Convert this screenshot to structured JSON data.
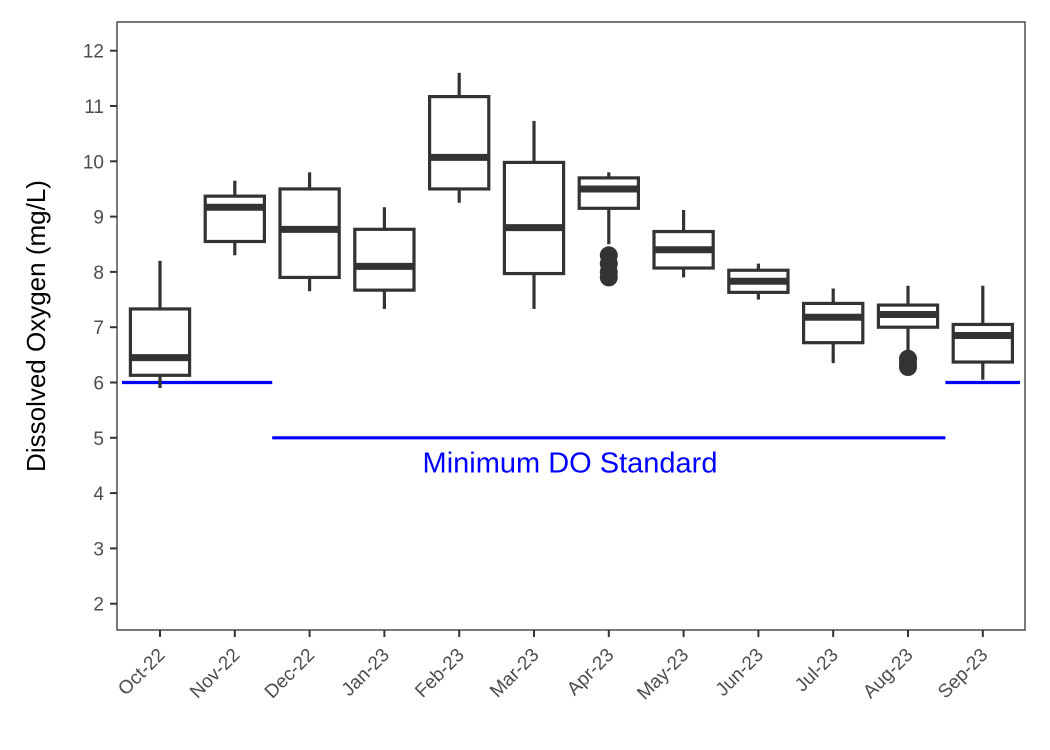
{
  "chart_data": {
    "type": "box",
    "title": "",
    "xlabel": "",
    "ylabel": "Dissolved Oxygen (mg/L)",
    "ylim": [
      1.5,
      12.4
    ],
    "yticks": [
      2,
      3,
      4,
      5,
      6,
      7,
      8,
      9,
      10,
      11,
      12
    ],
    "grid": false,
    "legend": "none",
    "categories": [
      "Oct-22",
      "Nov-22",
      "Dec-22",
      "Jan-23",
      "Feb-23",
      "Mar-23",
      "Apr-23",
      "May-23",
      "Jun-23",
      "Jul-23",
      "Aug-23",
      "Sep-23"
    ],
    "boxes": [
      {
        "min": 5.9,
        "q1": 6.13,
        "median": 6.45,
        "q3": 7.33,
        "max": 8.2,
        "outliers": []
      },
      {
        "min": 8.3,
        "q1": 8.55,
        "median": 9.17,
        "q3": 9.37,
        "max": 9.65,
        "outliers": []
      },
      {
        "min": 7.65,
        "q1": 7.9,
        "median": 8.77,
        "q3": 9.5,
        "max": 9.8,
        "outliers": []
      },
      {
        "min": 7.33,
        "q1": 7.67,
        "median": 8.1,
        "q3": 8.77,
        "max": 9.17,
        "outliers": []
      },
      {
        "min": 9.25,
        "q1": 9.5,
        "median": 10.07,
        "q3": 11.17,
        "max": 11.6,
        "outliers": []
      },
      {
        "min": 7.33,
        "q1": 7.97,
        "median": 8.8,
        "q3": 9.98,
        "max": 10.73,
        "outliers": []
      },
      {
        "min": 8.5,
        "q1": 9.15,
        "median": 9.5,
        "q3": 9.7,
        "max": 9.8,
        "outliers": [
          8.3,
          8.15,
          8.0,
          7.9
        ]
      },
      {
        "min": 7.9,
        "q1": 8.07,
        "median": 8.4,
        "q3": 8.73,
        "max": 9.12,
        "outliers": []
      },
      {
        "min": 7.5,
        "q1": 7.63,
        "median": 7.83,
        "q3": 8.03,
        "max": 8.15,
        "outliers": []
      },
      {
        "min": 6.35,
        "q1": 6.72,
        "median": 7.18,
        "q3": 7.43,
        "max": 7.7,
        "outliers": []
      },
      {
        "min": 6.5,
        "q1": 7.0,
        "median": 7.23,
        "q3": 7.4,
        "max": 7.75,
        "outliers": [
          6.43,
          6.35,
          6.28
        ]
      },
      {
        "min": 6.05,
        "q1": 6.37,
        "median": 6.85,
        "q3": 7.05,
        "max": 7.75,
        "outliers": []
      }
    ],
    "reference_lines": [
      {
        "value": 6,
        "from": "Oct-22",
        "to": "Nov-22",
        "color": "#0000ff"
      },
      {
        "value": 5,
        "from": "Dec-22",
        "to": "Aug-23",
        "color": "#0000ff"
      },
      {
        "value": 6,
        "from": "Sep-23",
        "to": "Sep-23",
        "color": "#0000ff"
      }
    ],
    "annotations": [
      {
        "text": "Minimum DO Standard",
        "x": "Jun-23",
        "y": 4.55,
        "color": "#0000ff"
      }
    ],
    "colors": {
      "box": "#333333",
      "reference": "#0000ff",
      "tick_label": "#4d4d4d",
      "axis_title": "#000000",
      "panel_border": "#333333"
    }
  }
}
